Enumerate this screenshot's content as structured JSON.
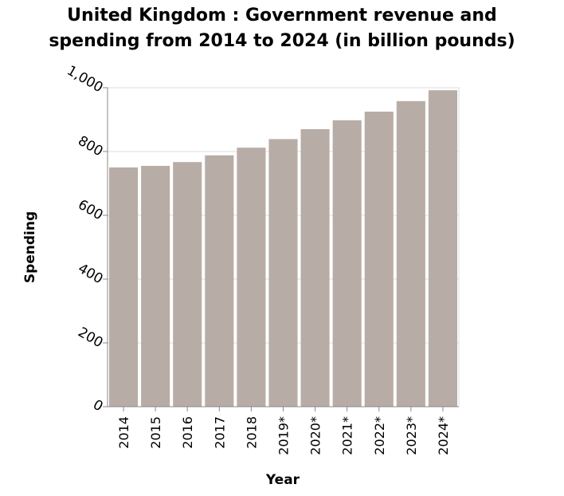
{
  "chart_data": {
    "type": "bar",
    "title_lines": [
      "United Kingdom : Government revenue and",
      "spending from 2014 to 2024 (in billion pounds)"
    ],
    "xlabel": "Year",
    "ylabel": "Spending",
    "categories": [
      "2014",
      "2015",
      "2016",
      "2017",
      "2018",
      "2019*",
      "2020*",
      "2021*",
      "2022*",
      "2023*",
      "2024*"
    ],
    "values": [
      750,
      755,
      767,
      788,
      812,
      839,
      870,
      898,
      925,
      958,
      992
    ],
    "ylim": [
      0,
      1000
    ],
    "yticks": [
      0,
      200,
      400,
      600,
      800,
      1000
    ],
    "ytick_labels": [
      "0",
      "200",
      "400",
      "600",
      "800",
      "1,000"
    ],
    "grid": true,
    "bar_color": "#b8aca7",
    "grid_color": "#dddddd",
    "axis_color": "#888888"
  }
}
